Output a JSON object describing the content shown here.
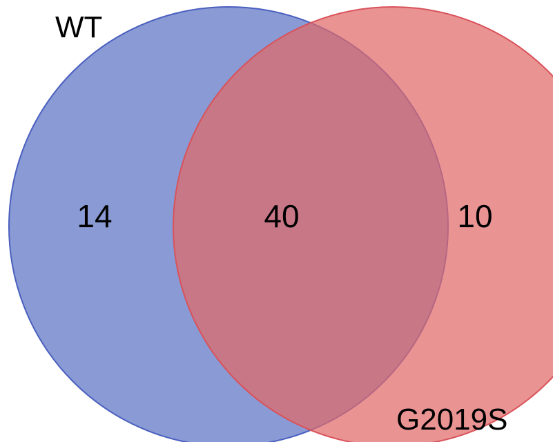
{
  "diagram": {
    "type": "venn",
    "sets": [
      {
        "id": "left",
        "label": "WT",
        "fill": "#5b73c4",
        "stroke": "#4a5fbf"
      },
      {
        "id": "right",
        "label": "G2019S",
        "fill": "#e06a6a",
        "stroke": "#d9525a"
      }
    ],
    "regions": {
      "left_only": "14",
      "intersection": "40",
      "right_only": "10"
    }
  }
}
